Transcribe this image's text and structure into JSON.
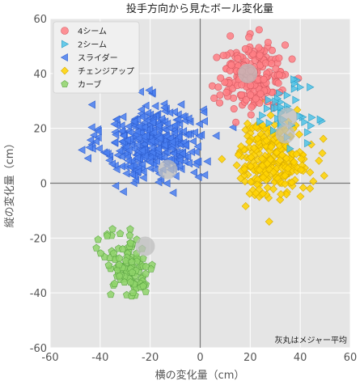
{
  "chart_data": {
    "type": "scatter",
    "title": "投手方向から見たボール変化量",
    "xlabel": "横の変化量（cm）",
    "ylabel": "縦の変化量（cm）",
    "xlim": [
      -60,
      60
    ],
    "ylim": [
      -60,
      60
    ],
    "xticks": [
      -60,
      -40,
      -20,
      0,
      20,
      40,
      60
    ],
    "yticks": [
      -60,
      -40,
      -20,
      0,
      20,
      40,
      60
    ],
    "grid": true,
    "legend_position": "top-left",
    "annotation": "灰丸はメジャー平均",
    "reference_lines": {
      "x": 0,
      "y": 0
    },
    "series": [
      {
        "name": "4シーム",
        "marker": "circle",
        "color": "#ff7f85",
        "edge": "#d65a62",
        "center": [
          21,
          39
        ],
        "spread": [
          7,
          6
        ],
        "count": 220,
        "league_average": [
          19,
          40
        ]
      },
      {
        "name": "2シーム",
        "marker": "triangle-right",
        "color": "#4fc3e8",
        "edge": "#2a9cc4",
        "center": [
          34,
          26
        ],
        "spread": [
          5,
          5
        ],
        "count": 45,
        "league_average": [
          35,
          24
        ]
      },
      {
        "name": "スライダー",
        "marker": "triangle-left",
        "color": "#4a7ff0",
        "edge": "#2f5fd0",
        "center": [
          -19,
          15
        ],
        "spread": [
          10,
          7
        ],
        "count": 380,
        "league_average": [
          -13,
          5
        ]
      },
      {
        "name": "チェンジアップ",
        "marker": "diamond",
        "color": "#ffd400",
        "edge": "#d8ab00",
        "center": [
          29,
          9
        ],
        "spread": [
          7,
          7
        ],
        "count": 260,
        "league_average": [
          34,
          18
        ]
      },
      {
        "name": "カーブ",
        "marker": "pentagon",
        "color": "#8fd36a",
        "edge": "#5fa846",
        "center": [
          -28,
          -30
        ],
        "spread": [
          5,
          6
        ],
        "count": 110,
        "league_average": [
          -22,
          -23
        ]
      }
    ]
  }
}
